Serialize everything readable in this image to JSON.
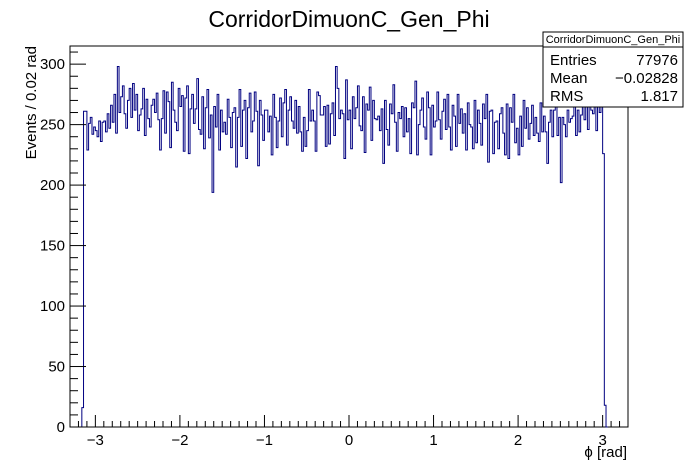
{
  "chart_data": {
    "type": "histogram",
    "title": "CorridorDimuonC_Gen_Phi",
    "xlabel": "ϕ [rad]",
    "ylabel": "Events / 0.02 rad",
    "xlim": [
      -3.3,
      3.3
    ],
    "ylim": [
      0,
      315
    ],
    "bin_width": 0.02,
    "x_ticks": [
      -3,
      -2,
      -1,
      0,
      1,
      2,
      3
    ],
    "x_tick_labels": [
      "−3",
      "−2",
      "−1",
      "0",
      "1",
      "2",
      "3"
    ],
    "y_ticks": [
      0,
      50,
      100,
      150,
      200,
      250,
      300
    ],
    "y_tick_labels": [
      "0",
      "50",
      "100",
      "150",
      "200",
      "250",
      "300"
    ],
    "line_color": "#000080",
    "grid": false,
    "legend": "none",
    "stats_box": {
      "title": "CorridorDimuonC_Gen_Phi",
      "placement": "top-right",
      "rows": [
        {
          "label": "Entries",
          "value": "77976"
        },
        {
          "label": "Mean",
          "value": "−0.02828"
        },
        {
          "label": "RMS",
          "value": "1.817"
        }
      ]
    },
    "bins": {
      "start": -3.16,
      "values": [
        16,
        261,
        261,
        229,
        251,
        256,
        242,
        248,
        245,
        240,
        253,
        236,
        252,
        253,
        244,
        259,
        247,
        266,
        252,
        275,
        243,
        298,
        260,
        273,
        282,
        259,
        247,
        270,
        280,
        256,
        284,
        262,
        275,
        245,
        258,
        263,
        280,
        241,
        271,
        255,
        248,
        266,
        271,
        260,
        276,
        254,
        229,
        255,
        278,
        243,
        277,
        269,
        231,
        285,
        262,
        252,
        245,
        280,
        265,
        274,
        228,
        272,
        282,
        226,
        263,
        275,
        251,
        263,
        288,
        246,
        242,
        273,
        230,
        264,
        279,
        239,
        258,
        194,
        265,
        248,
        275,
        229,
        262,
        244,
        252,
        242,
        271,
        256,
        231,
        260,
        264,
        215,
        256,
        279,
        232,
        262,
        270,
        222,
        264,
        276,
        244,
        253,
        277,
        261,
        216,
        270,
        258,
        237,
        262,
        262,
        244,
        257,
        225,
        275,
        256,
        231,
        253,
        272,
        240,
        268,
        279,
        233,
        262,
        273,
        253,
        247,
        270,
        243,
        265,
        244,
        228,
        256,
        232,
        245,
        279,
        253,
        262,
        253,
        228,
        277,
        274,
        258,
        258,
        265,
        232,
        266,
        234,
        259,
        268,
        241,
        298,
        280,
        255,
        262,
        259,
        222,
        287,
        254,
        262,
        230,
        273,
        255,
        264,
        282,
        249,
        245,
        273,
        227,
        267,
        262,
        281,
        237,
        270,
        255,
        254,
        257,
        245,
        263,
        218,
        270,
        246,
        233,
        267,
        259,
        283,
        252,
        228,
        260,
        255,
        265,
        240,
        264,
        244,
        255,
        226,
        268,
        264,
        286,
        225,
        250,
        262,
        272,
        248,
        238,
        277,
        264,
        225,
        266,
        248,
        253,
        277,
        254,
        238,
        261,
        271,
        246,
        275,
        248,
        229,
        266,
        257,
        232,
        275,
        251,
        263,
        243,
        259,
        229,
        268,
        250,
        248,
        230,
        270,
        235,
        262,
        251,
        233,
        267,
        255,
        275,
        219,
        261,
        262,
        226,
        252,
        253,
        230,
        259,
        264,
        243,
        225,
        267,
        222,
        264,
        252,
        275,
        235,
        247,
        225,
        257,
        232,
        270,
        247,
        264,
        238,
        251,
        266,
        241,
        256,
        243,
        236,
        268,
        244,
        257,
        244,
        218,
        252,
        262,
        240,
        262,
        270,
        241,
        256,
        202,
        256,
        250,
        240,
        262,
        252,
        255,
        257,
        271,
        241,
        262,
        244,
        258,
        268,
        254,
        277,
        246,
        265,
        262,
        259,
        285,
        245,
        269,
        260,
        282,
        226,
        18,
        0
      ]
    }
  }
}
